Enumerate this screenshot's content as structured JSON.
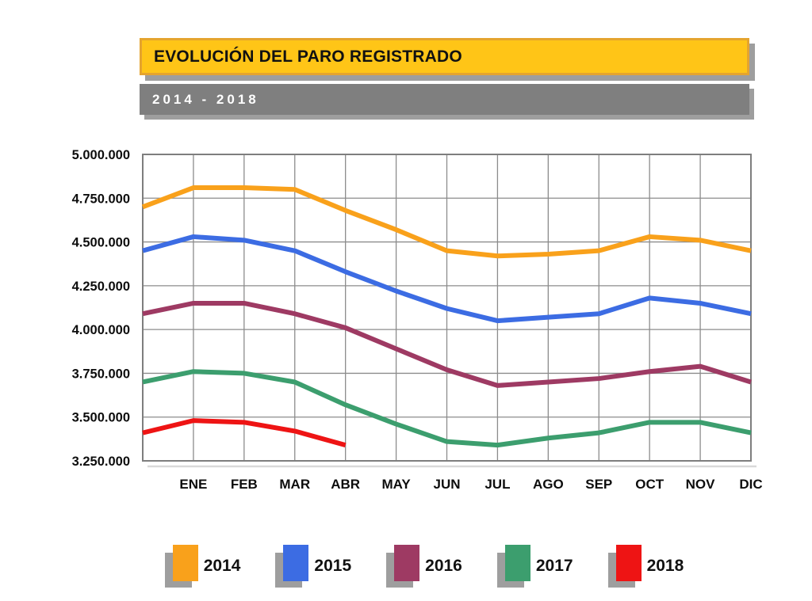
{
  "header": {
    "title": "EVOLUCIÓN DEL PARO REGISTRADO",
    "subtitle": "2014 - 2018",
    "colors": {
      "title_bg": "#FFC517",
      "title_border": "#E5A42E",
      "title_text": "#111111",
      "subtitle_bg": "#7F7F7F",
      "subtitle_text": "#FFFFFF",
      "banner_shadow": "#9E9E9E"
    }
  },
  "chart_data": {
    "type": "line",
    "title": "EVOLUCIÓN DEL PARO REGISTRADO",
    "subtitle": "2014 - 2018",
    "categories": [
      "",
      "ENE",
      "FEB",
      "MAR",
      "ABR",
      "MAY",
      "JUN",
      "JUL",
      "AGO",
      "SEP",
      "OCT",
      "NOV",
      "DIC"
    ],
    "layout_note": "each series starts on the left plot edge with an unlabeled point one interval before ENE; 2018 ends at ABR",
    "ylim": [
      3250000,
      5000000
    ],
    "y_tick_step": 250000,
    "y_tick_labels": [
      "5.000.000",
      "4.750.000",
      "4.500.000",
      "4.250.000",
      "4.000.000",
      "3.750.000",
      "3.500.000",
      "3.250.000"
    ],
    "grid": true,
    "legend_position": "bottom",
    "axis_color": "#7E7E7E",
    "grid_color": "#8C8C8C",
    "series": [
      {
        "name": "2014",
        "color": "#F9A11B",
        "values": [
          4700000,
          4810000,
          4810000,
          4800000,
          4680000,
          4570000,
          4450000,
          4420000,
          4430000,
          4450000,
          4530000,
          4510000,
          4450000
        ]
      },
      {
        "name": "2015",
        "color": "#3C6CE3",
        "values": [
          4450000,
          4530000,
          4510000,
          4450000,
          4330000,
          4220000,
          4120000,
          4050000,
          4070000,
          4090000,
          4180000,
          4150000,
          4090000
        ]
      },
      {
        "name": "2016",
        "color": "#9E3A63",
        "values": [
          4090000,
          4150000,
          4150000,
          4090000,
          4010000,
          3890000,
          3770000,
          3680000,
          3700000,
          3720000,
          3760000,
          3790000,
          3700000
        ]
      },
      {
        "name": "2017",
        "color": "#3C9E6E",
        "values": [
          3700000,
          3760000,
          3750000,
          3700000,
          3570000,
          3460000,
          3360000,
          3340000,
          3380000,
          3410000,
          3470000,
          3470000,
          3410000
        ]
      },
      {
        "name": "2018",
        "color": "#EE1414",
        "values": [
          3410000,
          3480000,
          3470000,
          3420000,
          3340000
        ]
      }
    ]
  },
  "legend": {
    "shadow_color": "#9E9E9E",
    "items": [
      "2014",
      "2015",
      "2016",
      "2017",
      "2018"
    ]
  }
}
